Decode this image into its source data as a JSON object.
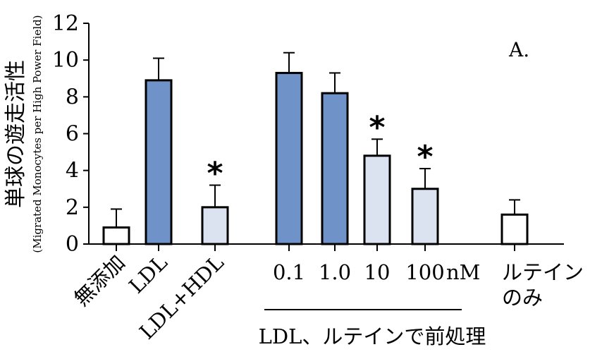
{
  "chart_data": {
    "type": "bar",
    "panel_label": "A.",
    "ylabel": "単球の遊走活性",
    "ylabel_sub": "(Migrated Monocytes per High Power Field)",
    "ylim": [
      0,
      12
    ],
    "yticks": [
      "0",
      "2",
      "4",
      "6",
      "8",
      "10",
      "12"
    ],
    "categories": [
      {
        "label": "無添加",
        "value": 0.9,
        "err": 1.0,
        "color": "#ffffff",
        "star": false
      },
      {
        "label": "LDL",
        "value": 8.9,
        "err": 1.2,
        "color": "#6f92c8",
        "star": false
      },
      {
        "label": "LDL+HDL",
        "value": 2.0,
        "err": 1.2,
        "color": "#dbe2f0",
        "star": true
      },
      {
        "label": "0.1",
        "value": 9.3,
        "err": 1.1,
        "color": "#6f92c8",
        "star": false
      },
      {
        "label": "1.0",
        "value": 8.2,
        "err": 1.1,
        "color": "#6f92c8",
        "star": false
      },
      {
        "label": "10",
        "value": 4.8,
        "err": 0.9,
        "color": "#dbe2f0",
        "star": true
      },
      {
        "label": "100",
        "value": 3.0,
        "err": 1.1,
        "color": "#dbe2f0",
        "star": true
      },
      {
        "label": "ルテイン\nのみ",
        "value": 1.6,
        "err": 0.8,
        "color": "#ffffff",
        "star": false
      }
    ],
    "unit_label": "nM",
    "star_symbol": "*",
    "group_label": "LDL、ルテインで前処理",
    "grid": false
  }
}
